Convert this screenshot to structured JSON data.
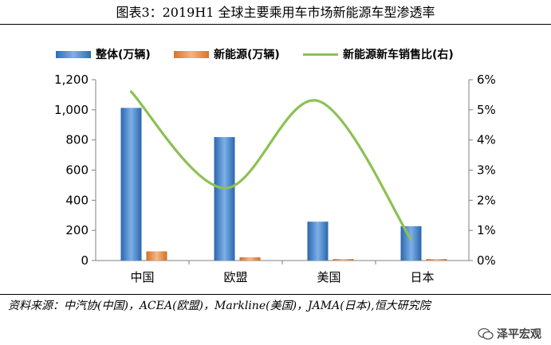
{
  "title": "图表3：2019H1 全球主要乘用车市场新能源车型渗透率",
  "source_text": "资料来源：中汽协(中国)，ACEA(欧盟)，Markline(美国)，JAMA(日本),恒大研究院",
  "watermark": "泽平宏观",
  "colors": {
    "overall": "#3f7fc9",
    "nev": "#ed8a3d",
    "ratio": "#8dc153"
  },
  "chart_data": {
    "type": "bar",
    "categories": [
      "中国",
      "欧盟",
      "美国",
      "日本"
    ],
    "series": [
      {
        "name": "整体(万辆)",
        "type": "bar",
        "axis": "left",
        "values": [
          1013,
          819,
          258,
          228
        ]
      },
      {
        "name": "新能源(万辆)",
        "type": "bar",
        "axis": "left",
        "values": [
          61,
          22,
          10,
          10
        ]
      },
      {
        "name": "新能源新车销售比(右)",
        "type": "line",
        "axis": "right",
        "values": [
          5.6,
          2.4,
          5.3,
          0.7
        ]
      }
    ],
    "ylim_left": [
      0,
      1200
    ],
    "ylim_right": [
      0,
      6
    ],
    "yticks_left": [
      "0",
      "200",
      "400",
      "600",
      "800",
      "1,000",
      "1,200"
    ],
    "yticks_right": [
      "0%",
      "1%",
      "2%",
      "3%",
      "4%",
      "5%",
      "6%"
    ],
    "legend_position": "top",
    "grid": false
  }
}
